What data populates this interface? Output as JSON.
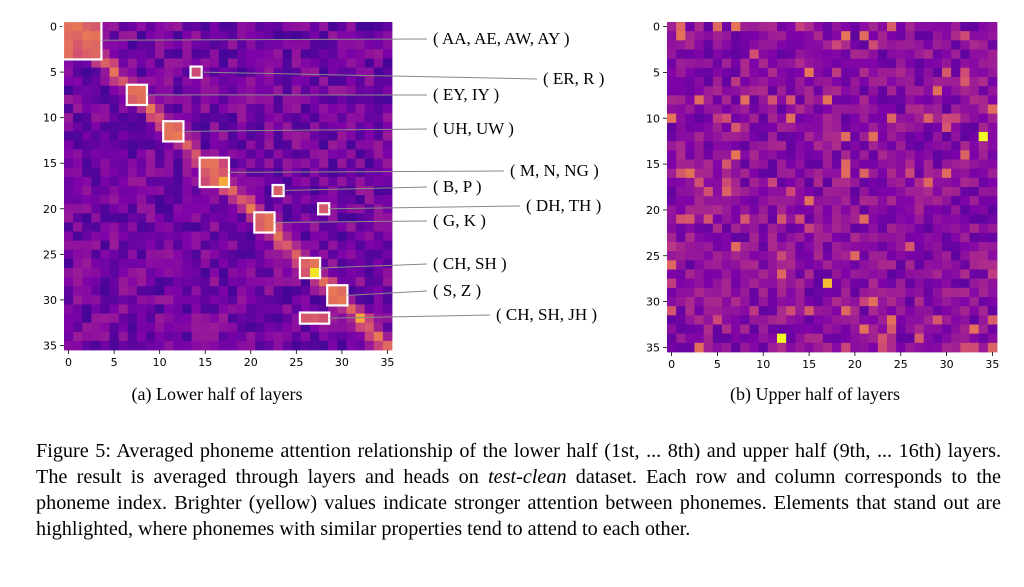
{
  "figure": {
    "caption_parts": {
      "a": "Figure 5: Averaged phoneme attention relationship of the lower half (1st, ... 8th) and upper half (9th, ... 16th) layers. The result is averaged through layers and heads on ",
      "b": "test-clean",
      "c": " dataset. Each row and column corresponds to the phoneme index. Brighter (yellow) values indicate stronger attention between phonemes. Elements that stand out are highlighted, where phonemes with similar properties tend to attend to each other."
    }
  },
  "colors": {
    "low": "#2a0a87",
    "mid": "#b1318f",
    "high": "#f5f424",
    "box": "#ffffff",
    "leader": "#888888"
  },
  "chart_data": [
    {
      "type": "heatmap",
      "subcaption": "(a)  Lower half of layers",
      "size": 36,
      "x_ticks": [
        "0",
        "5",
        "10",
        "15",
        "20",
        "25",
        "30",
        "35"
      ],
      "y_ticks": [
        "0",
        "5",
        "10",
        "15",
        "20",
        "25",
        "30",
        "35"
      ],
      "diagonal_strength": 0.55,
      "background_strength": 0.12,
      "highlights": [
        {
          "label": "( AA, AE, AW, AY )",
          "rows": [
            0,
            3
          ],
          "cols": [
            0,
            3
          ]
        },
        {
          "label": "( ER, R )",
          "rows": [
            5,
            5
          ],
          "cols": [
            14,
            14
          ]
        },
        {
          "label": "( EY, IY )",
          "rows": [
            7,
            8
          ],
          "cols": [
            7,
            8
          ]
        },
        {
          "label": "( UH, UW )",
          "rows": [
            11,
            12
          ],
          "cols": [
            11,
            12
          ]
        },
        {
          "label": "( M, N, NG )",
          "rows": [
            15,
            17
          ],
          "cols": [
            15,
            17
          ]
        },
        {
          "label": "( B, P )",
          "rows": [
            18,
            18
          ],
          "cols": [
            23,
            23
          ]
        },
        {
          "label": "( DH, TH )",
          "rows": [
            20,
            20
          ],
          "cols": [
            28,
            28
          ]
        },
        {
          "label": "( G, K )",
          "rows": [
            21,
            22
          ],
          "cols": [
            21,
            22
          ]
        },
        {
          "label": "( CH, SH )",
          "rows": [
            26,
            27
          ],
          "cols": [
            26,
            27
          ]
        },
        {
          "label": "( S, Z )",
          "rows": [
            29,
            30
          ],
          "cols": [
            29,
            30
          ]
        },
        {
          "label": "( CH, SH, JH )",
          "rows": [
            32,
            32
          ],
          "cols": [
            26,
            28
          ]
        }
      ],
      "bright_cells": [
        {
          "row": 27,
          "col": 27,
          "value": 0.95
        },
        {
          "row": 17,
          "col": 17,
          "value": 0.8
        },
        {
          "row": 32,
          "col": 32,
          "value": 0.8
        }
      ]
    },
    {
      "type": "heatmap",
      "subcaption": "(b)  Upper half of layers",
      "size": 36,
      "x_ticks": [
        "0",
        "5",
        "10",
        "15",
        "20",
        "25",
        "30",
        "35"
      ],
      "y_ticks": [
        "0",
        "5",
        "10",
        "15",
        "20",
        "25",
        "30",
        "35"
      ],
      "background_strength": 0.18,
      "bright_cells": [
        {
          "row": 12,
          "col": 34,
          "value": 1.0
        },
        {
          "row": 34,
          "col": 12,
          "value": 1.0
        },
        {
          "row": 28,
          "col": 17,
          "value": 0.85
        },
        {
          "row": 27,
          "col": 12,
          "value": 0.6
        },
        {
          "row": 17,
          "col": 28,
          "value": 0.6
        },
        {
          "row": 21,
          "col": 12,
          "value": 0.55
        },
        {
          "row": 24,
          "col": 26,
          "value": 0.55
        },
        {
          "row": 18,
          "col": 13,
          "value": 0.5
        },
        {
          "row": 10,
          "col": 30,
          "value": 0.5
        },
        {
          "row": 32,
          "col": 5,
          "value": 0.5
        },
        {
          "row": 6,
          "col": 7,
          "value": 0.45
        },
        {
          "row": 31,
          "col": 9,
          "value": 0.45
        }
      ]
    }
  ]
}
